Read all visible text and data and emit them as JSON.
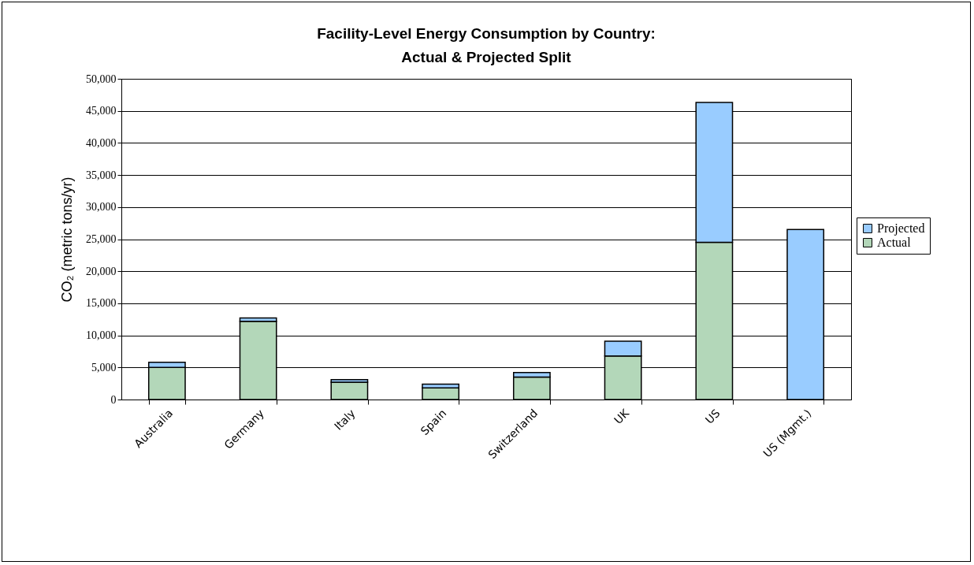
{
  "chart_data": {
    "type": "bar",
    "stacked": true,
    "title": "Facility-Level Energy Consumption by Country:\nActual & Projected Split",
    "ylabel": "CO₂ (metric tons/yr)",
    "categories": [
      "Australia",
      "Germany",
      "Italy",
      "Spain",
      "Switzerland",
      "UK",
      "US",
      "US (Mgmt.)"
    ],
    "series": [
      {
        "name": "Actual",
        "color": "#b3d7b9",
        "values": [
          5000,
          12200,
          2700,
          1800,
          3500,
          6800,
          24500,
          0
        ]
      },
      {
        "name": "Projected",
        "color": "#99ccff",
        "values": [
          800,
          500,
          400,
          600,
          700,
          2300,
          21800,
          26500
        ]
      }
    ],
    "ylim": [
      0,
      50000
    ],
    "yticks": [
      0,
      {
        "value": 5000,
        "label": "5,000"
      },
      {
        "value": 10000,
        "label": "10,000"
      },
      {
        "value": 15000,
        "label": "15,000"
      },
      {
        "value": 20000,
        "label": "20,000"
      },
      {
        "value": 25000,
        "label": "25,000"
      },
      {
        "value": 30000,
        "label": "30,000"
      },
      {
        "value": 35000,
        "label": "35,000"
      },
      {
        "value": 40000,
        "label": "40,000"
      },
      {
        "value": 45000,
        "label": "45,000"
      },
      {
        "value": 50000,
        "label": "50,000"
      }
    ],
    "grid": "y",
    "legend": "right"
  }
}
